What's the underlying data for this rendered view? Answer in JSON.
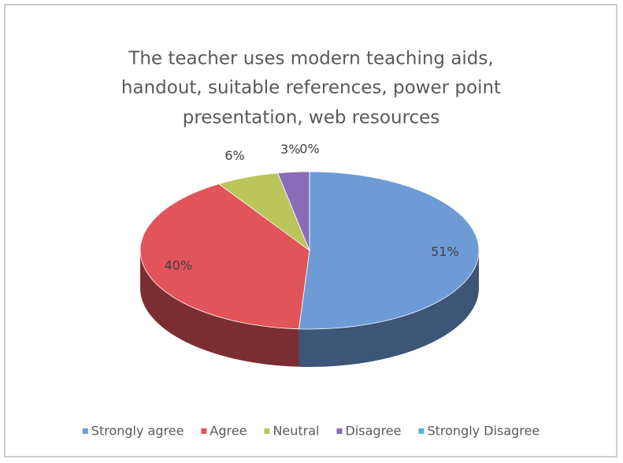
{
  "chart_data": {
    "type": "pie",
    "title": [
      "The teacher uses modern teaching aids,",
      "handout, suitable references, power point",
      "presentation, web resources"
    ],
    "categories": [
      "Strongly agree",
      "Agree",
      "Neutral",
      "Disagree",
      "Strongly Disagree"
    ],
    "values": [
      51,
      40,
      6,
      3,
      0
    ],
    "value_labels": [
      "51%",
      "40%",
      "6%",
      "3%",
      "0%"
    ],
    "colors": [
      "#6e9bd6",
      "#e0545a",
      "#b9c45b",
      "#8a6bb8",
      "#55b3d0"
    ],
    "legend": "bottom"
  }
}
